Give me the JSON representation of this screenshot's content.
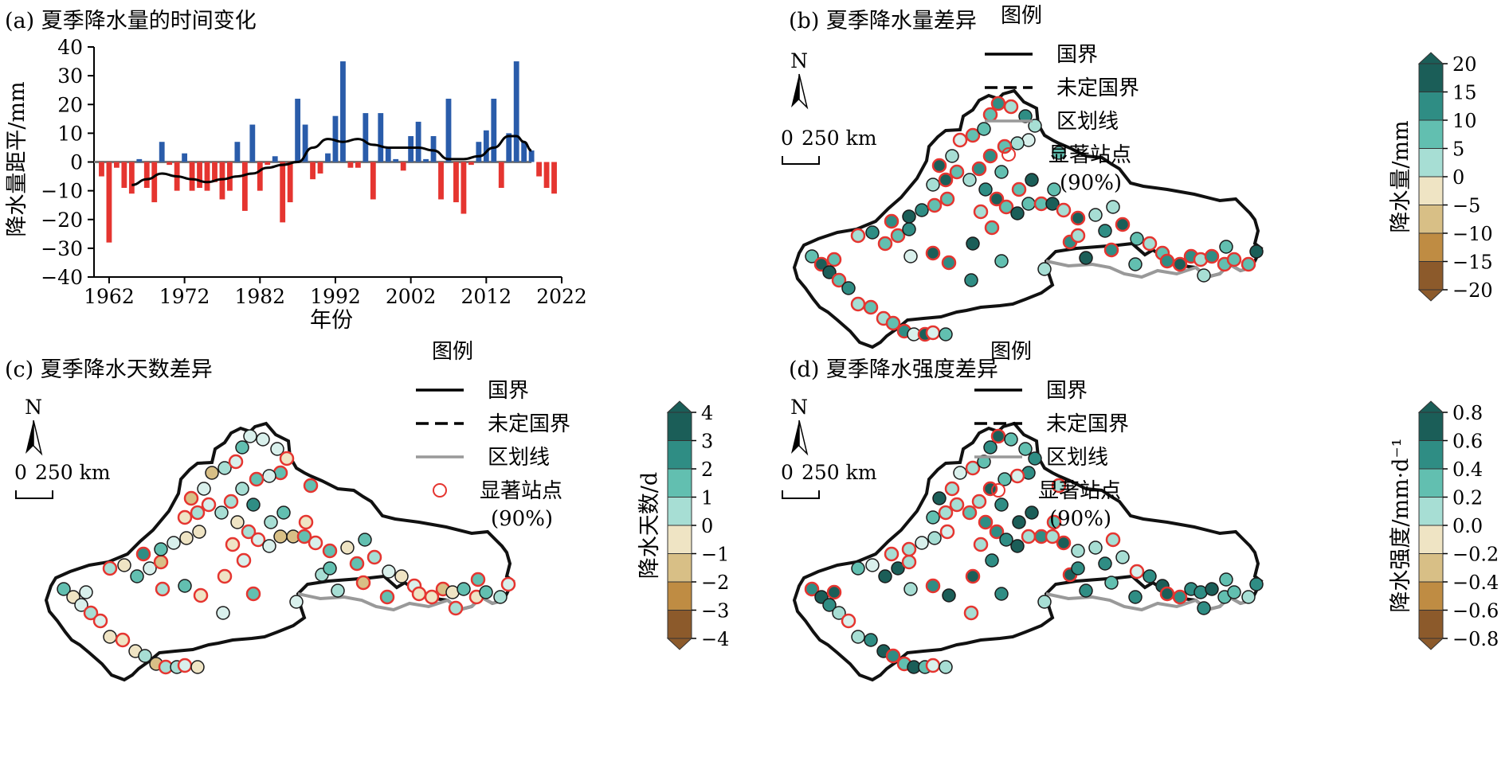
{
  "panel_a": {
    "title": "(a) 夏季降水量的时间变化",
    "xlabel": "年份",
    "ylabel": "降水量距平/mm"
  },
  "panel_b": {
    "title": "(b) 夏季降水量差异",
    "cbar_label": "降水量/mm",
    "cbar_ticks": [
      "20",
      "15",
      "10",
      "5",
      "0",
      "−5",
      "−10",
      "−15",
      "−20"
    ]
  },
  "panel_c": {
    "title": "(c) 夏季降水天数差异",
    "cbar_label": "降水天数/d",
    "cbar_ticks": [
      "4",
      "3",
      "2",
      "1",
      "0",
      "−1",
      "−2",
      "−3",
      "−4"
    ]
  },
  "panel_d": {
    "title": "(d) 夏季降水强度差异",
    "cbar_label": "降水强度/mm·d⁻¹",
    "cbar_ticks": [
      "0.8",
      "0.6",
      "0.4",
      "0.2",
      "0.0",
      "−0.2",
      "−0.4",
      "−0.6",
      "−0.8"
    ]
  },
  "legend": {
    "title": "图例",
    "items": [
      "国界",
      "未定国界",
      "区划线",
      "显著站点",
      "(90%)"
    ]
  },
  "map": {
    "north_label": "N",
    "scale_zero": "0",
    "scale_label": "250 km"
  },
  "colors": {
    "positive_bar": "#2a5caa",
    "negative_bar": "#e53530",
    "smooth_line": "#000000",
    "zero_line": "#777777",
    "boundary": "#111111",
    "division_line": "#999999",
    "signif_ring": "#e53530",
    "cbar": [
      "#1b5e58",
      "#2f8d84",
      "#62bfb0",
      "#a7ded4",
      "#d9f0ec",
      "#efe4c4",
      "#d8bf86",
      "#bf8c43",
      "#8c5a2b"
    ]
  },
  "chart_data": {
    "type": "bar",
    "title": "(a) 夏季降水量的时间变化",
    "xlabel": "年份",
    "ylabel": "降水量距平/mm",
    "ylim": [
      -40,
      40
    ],
    "yticks": [
      -40,
      -30,
      -20,
      -10,
      0,
      10,
      20,
      30,
      40
    ],
    "xlim": [
      1960,
      2022
    ],
    "xticks": [
      1962,
      1972,
      1982,
      1992,
      2002,
      2012,
      2022
    ],
    "years": [
      1961,
      1962,
      1963,
      1964,
      1965,
      1966,
      1967,
      1968,
      1969,
      1970,
      1971,
      1972,
      1973,
      1974,
      1975,
      1976,
      1977,
      1978,
      1979,
      1980,
      1981,
      1982,
      1983,
      1984,
      1985,
      1986,
      1987,
      1988,
      1989,
      1990,
      1991,
      1992,
      1993,
      1994,
      1995,
      1996,
      1997,
      1998,
      1999,
      2000,
      2001,
      2002,
      2003,
      2004,
      2005,
      2006,
      2007,
      2008,
      2009,
      2010,
      2011,
      2012,
      2013,
      2014,
      2015,
      2016,
      2017,
      2018,
      2019,
      2020,
      2021
    ],
    "values": [
      -5,
      -28,
      -2,
      -9,
      -11,
      1,
      -9,
      -14,
      7,
      -1,
      -10,
      3,
      -10,
      -9,
      -10,
      -7,
      -13,
      -10,
      7,
      -17,
      13,
      -10,
      -1,
      2,
      -21,
      -14,
      22,
      13,
      -6,
      -4,
      3,
      16,
      35,
      -2,
      -2,
      17,
      -13,
      17,
      5,
      1,
      -3,
      9,
      14,
      1,
      9,
      -13,
      22,
      -14,
      -18,
      -1,
      7,
      11,
      22,
      -9,
      10,
      35,
      7,
      4,
      -5,
      -9,
      -11
    ],
    "series": [
      {
        "name": "距平",
        "values": [
          -5,
          -28,
          -2,
          -9,
          -11,
          1,
          -9,
          -14,
          7,
          -1,
          -10,
          3,
          -10,
          -9,
          -10,
          -7,
          -13,
          -10,
          7,
          -17,
          13,
          -10,
          -1,
          2,
          -21,
          -14,
          22,
          13,
          -6,
          -4,
          3,
          16,
          35,
          -2,
          -2,
          17,
          -13,
          17,
          5,
          1,
          -3,
          9,
          14,
          1,
          9,
          -13,
          22,
          -14,
          -18,
          -1,
          7,
          11,
          22,
          -9,
          10,
          35,
          7,
          4,
          -5,
          -9,
          -11
        ]
      },
      {
        "name": "平滑",
        "x": [
          1965,
          1967,
          1969,
          1971,
          1973,
          1975,
          1977,
          1979,
          1981,
          1983,
          1985,
          1987,
          1989,
          1991,
          1993,
          1995,
          1997,
          1999,
          2001,
          2003,
          2005,
          2007,
          2009,
          2011,
          2013,
          2015,
          2016,
          2017,
          2018
        ],
        "values": [
          -8,
          -6,
          -4,
          -5,
          -6,
          -7,
          -6,
          -5,
          -4,
          -2,
          -1,
          0,
          5,
          8,
          7,
          8,
          6,
          5,
          5,
          5,
          4,
          1,
          1,
          2,
          5,
          9,
          9,
          7,
          4
        ]
      }
    ]
  }
}
